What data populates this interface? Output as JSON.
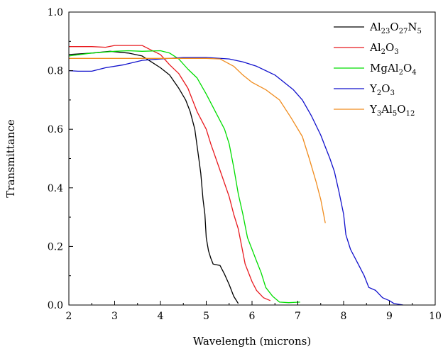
{
  "chart_data": {
    "type": "line",
    "title": "",
    "xlabel": "Wavelength (microns)",
    "ylabel": "Transmittance",
    "xlim": [
      2,
      10
    ],
    "ylim": [
      0,
      1.0
    ],
    "x_ticks": [
      2,
      3,
      4,
      5,
      6,
      7,
      8,
      9,
      10
    ],
    "x_tick_labels": [
      "2",
      "3",
      "4",
      "5",
      "6",
      "7",
      "8",
      "9",
      "10"
    ],
    "y_ticks": [
      0,
      0.2,
      0.4,
      0.6,
      0.8,
      1.0
    ],
    "y_tick_labels": [
      "0.0",
      "0.2",
      "0.4",
      "0.6",
      "0.8",
      "1.0"
    ],
    "grid": false,
    "legend_position": "top-right",
    "series": [
      {
        "name": "Al23O27N5",
        "legend": [
          {
            "t": "Al",
            "sub": false
          },
          {
            "t": "23",
            "sub": true
          },
          {
            "t": "O",
            "sub": false
          },
          {
            "t": "27",
            "sub": true
          },
          {
            "t": "N",
            "sub": false
          },
          {
            "t": "5",
            "sub": true
          }
        ],
        "color": "#000000",
        "points": [
          [
            2.0,
            0.855
          ],
          [
            2.5,
            0.86
          ],
          [
            2.9,
            0.866
          ],
          [
            3.3,
            0.86
          ],
          [
            3.6,
            0.85
          ],
          [
            3.8,
            0.83
          ],
          [
            4.0,
            0.81
          ],
          [
            4.2,
            0.785
          ],
          [
            4.4,
            0.74
          ],
          [
            4.55,
            0.7
          ],
          [
            4.65,
            0.66
          ],
          [
            4.75,
            0.6
          ],
          [
            4.82,
            0.52
          ],
          [
            4.88,
            0.45
          ],
          [
            4.93,
            0.36
          ],
          [
            4.97,
            0.31
          ],
          [
            5.0,
            0.23
          ],
          [
            5.05,
            0.185
          ],
          [
            5.1,
            0.16
          ],
          [
            5.15,
            0.14
          ],
          [
            5.3,
            0.135
          ],
          [
            5.4,
            0.105
          ],
          [
            5.5,
            0.07
          ],
          [
            5.6,
            0.03
          ],
          [
            5.7,
            0.005
          ]
        ]
      },
      {
        "name": "Al2O3",
        "legend": [
          {
            "t": "Al",
            "sub": false
          },
          {
            "t": "2",
            "sub": true
          },
          {
            "t": "O",
            "sub": false
          },
          {
            "t": "3",
            "sub": true
          }
        ],
        "color": "#e8191e",
        "points": [
          [
            2.0,
            0.882
          ],
          [
            2.5,
            0.882
          ],
          [
            2.8,
            0.88
          ],
          [
            3.0,
            0.886
          ],
          [
            3.3,
            0.886
          ],
          [
            3.6,
            0.886
          ],
          [
            3.8,
            0.87
          ],
          [
            4.0,
            0.855
          ],
          [
            4.2,
            0.82
          ],
          [
            4.4,
            0.79
          ],
          [
            4.6,
            0.74
          ],
          [
            4.8,
            0.66
          ],
          [
            5.0,
            0.6
          ],
          [
            5.1,
            0.55
          ],
          [
            5.3,
            0.46
          ],
          [
            5.5,
            0.37
          ],
          [
            5.6,
            0.31
          ],
          [
            5.7,
            0.26
          ],
          [
            5.8,
            0.18
          ],
          [
            5.85,
            0.14
          ],
          [
            6.0,
            0.08
          ],
          [
            6.1,
            0.05
          ],
          [
            6.25,
            0.025
          ],
          [
            6.4,
            0.015
          ]
        ]
      },
      {
        "name": "MgAl2O4",
        "legend": [
          {
            "t": "MgAl",
            "sub": false
          },
          {
            "t": "2",
            "sub": true
          },
          {
            "t": "O",
            "sub": false
          },
          {
            "t": "4",
            "sub": true
          }
        ],
        "color": "#00dd00",
        "points": [
          [
            2.0,
            0.85
          ],
          [
            2.5,
            0.86
          ],
          [
            3.0,
            0.866
          ],
          [
            3.3,
            0.868
          ],
          [
            3.6,
            0.866
          ],
          [
            4.0,
            0.868
          ],
          [
            4.2,
            0.86
          ],
          [
            4.4,
            0.84
          ],
          [
            4.6,
            0.805
          ],
          [
            4.8,
            0.775
          ],
          [
            5.0,
            0.72
          ],
          [
            5.2,
            0.66
          ],
          [
            5.4,
            0.6
          ],
          [
            5.5,
            0.55
          ],
          [
            5.6,
            0.47
          ],
          [
            5.7,
            0.38
          ],
          [
            5.8,
            0.31
          ],
          [
            5.9,
            0.23
          ],
          [
            6.0,
            0.19
          ],
          [
            6.1,
            0.15
          ],
          [
            6.2,
            0.11
          ],
          [
            6.3,
            0.06
          ],
          [
            6.45,
            0.03
          ],
          [
            6.6,
            0.01
          ],
          [
            6.8,
            0.008
          ],
          [
            7.05,
            0.01
          ]
        ]
      },
      {
        "name": "Y2O3",
        "legend": [
          {
            "t": "Y",
            "sub": false
          },
          {
            "t": "2",
            "sub": true
          },
          {
            "t": "O",
            "sub": false
          },
          {
            "t": "3",
            "sub": true
          }
        ],
        "color": "#1010cc",
        "points": [
          [
            2.0,
            0.8
          ],
          [
            2.2,
            0.798
          ],
          [
            2.5,
            0.798
          ],
          [
            2.8,
            0.81
          ],
          [
            3.2,
            0.82
          ],
          [
            3.6,
            0.835
          ],
          [
            4.0,
            0.84
          ],
          [
            4.5,
            0.845
          ],
          [
            5.0,
            0.845
          ],
          [
            5.5,
            0.84
          ],
          [
            5.8,
            0.83
          ],
          [
            6.1,
            0.815
          ],
          [
            6.5,
            0.785
          ],
          [
            6.9,
            0.735
          ],
          [
            7.1,
            0.7
          ],
          [
            7.3,
            0.645
          ],
          [
            7.5,
            0.58
          ],
          [
            7.6,
            0.54
          ],
          [
            7.7,
            0.5
          ],
          [
            7.8,
            0.455
          ],
          [
            7.9,
            0.385
          ],
          [
            8.0,
            0.31
          ],
          [
            8.05,
            0.24
          ],
          [
            8.15,
            0.19
          ],
          [
            8.3,
            0.145
          ],
          [
            8.45,
            0.1
          ],
          [
            8.55,
            0.06
          ],
          [
            8.7,
            0.05
          ],
          [
            8.85,
            0.025
          ],
          [
            9.0,
            0.015
          ],
          [
            9.1,
            0.005
          ],
          [
            9.3,
            0.0
          ]
        ]
      },
      {
        "name": "Y3Al5O12",
        "legend": [
          {
            "t": "Y",
            "sub": false
          },
          {
            "t": "3",
            "sub": true
          },
          {
            "t": "Al",
            "sub": false
          },
          {
            "t": "5",
            "sub": true
          },
          {
            "t": "O",
            "sub": false
          },
          {
            "t": "12",
            "sub": true
          }
        ],
        "color": "#f08c1e",
        "points": [
          [
            2.0,
            0.842
          ],
          [
            3.0,
            0.842
          ],
          [
            4.0,
            0.842
          ],
          [
            5.0,
            0.842
          ],
          [
            5.3,
            0.84
          ],
          [
            5.6,
            0.815
          ],
          [
            5.8,
            0.785
          ],
          [
            6.0,
            0.76
          ],
          [
            6.3,
            0.735
          ],
          [
            6.6,
            0.7
          ],
          [
            6.85,
            0.64
          ],
          [
            7.1,
            0.575
          ],
          [
            7.25,
            0.5
          ],
          [
            7.4,
            0.42
          ],
          [
            7.5,
            0.36
          ],
          [
            7.6,
            0.28
          ]
        ]
      }
    ]
  }
}
